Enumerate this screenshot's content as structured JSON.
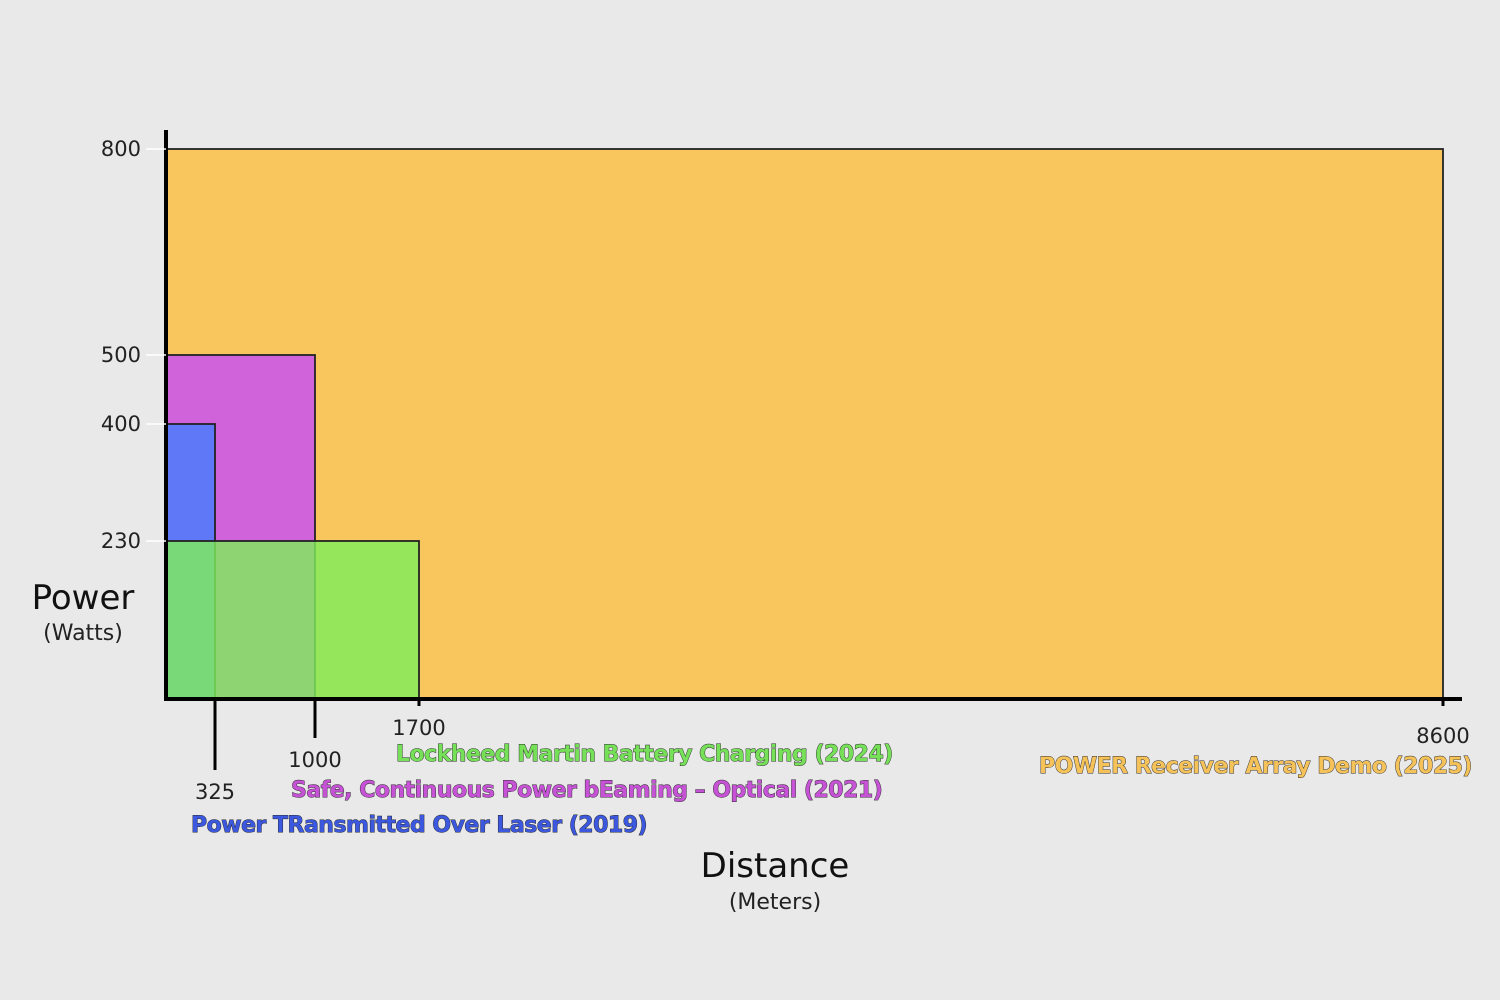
{
  "chart_data": {
    "type": "area",
    "xlabel": "Distance",
    "xunit": "(Meters)",
    "ylabel": "Power",
    "yunit": "(Watts)",
    "ylim": [
      0,
      800
    ],
    "y_ticks": [
      230,
      400,
      500,
      800
    ],
    "grid": false,
    "series": [
      {
        "name": "POWER Receiver Array Demo (2025)",
        "distance": 8600,
        "power": 800,
        "color": "#f8c65c",
        "label_color": "#f5c25a"
      },
      {
        "name": "Safe, Continuous Power bEaming – Optical (2021)",
        "distance": 1000,
        "power": 500,
        "color": "#d063d9",
        "label_color": "#c653d6"
      },
      {
        "name": "Power TRansmitted Over Laser (2019)",
        "distance": 325,
        "power": 400,
        "color": "#5f78f8",
        "label_color": "#3c58df"
      },
      {
        "name": "Lockheed Martin Battery Charging (2024)",
        "distance": 1700,
        "power": 230,
        "color": "#7fed5c",
        "label_color": "#76e058"
      }
    ]
  }
}
